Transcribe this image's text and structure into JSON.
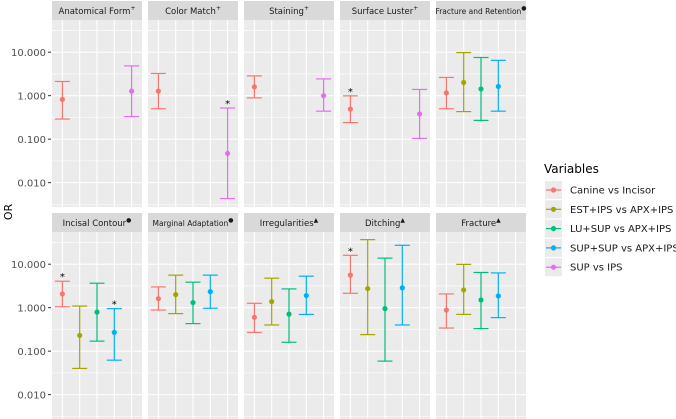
{
  "chart_data": {
    "type": "errorbar",
    "ylabel": "OR",
    "yscale": "log10",
    "ylim": [
      0.00275,
      55
    ],
    "yticks": [
      {
        "value": 10,
        "label": "10.000"
      },
      {
        "value": 1,
        "label": "1.000"
      },
      {
        "value": 0.1,
        "label": "0.100"
      },
      {
        "value": 0.01,
        "label": "0.010"
      }
    ],
    "legend": {
      "title": "Variables",
      "position": "right",
      "entries": [
        {
          "name": "Canine vs Incisor",
          "color": "#F8766D"
        },
        {
          "name": "EST+IPS vs APX+IPS",
          "color": "#A3A500"
        },
        {
          "name": "LU+SUP vs APX+IPS",
          "color": "#00BF7D"
        },
        {
          "name": "SUP+SUP vs APX+IPS",
          "color": "#00B0F6"
        },
        {
          "name": "SUP vs IPS",
          "color": "#E76BF3"
        }
      ]
    },
    "panels": [
      {
        "title": "Anatomical Form",
        "marker": "+",
        "points": [
          {
            "series": 0,
            "or": 0.82,
            "lo": 0.29,
            "hi": 2.12,
            "sig": false
          },
          {
            "series": 4,
            "or": 1.27,
            "lo": 0.33,
            "hi": 4.84,
            "sig": false
          }
        ]
      },
      {
        "title": "Color Match",
        "marker": "+",
        "points": [
          {
            "series": 0,
            "or": 1.27,
            "lo": 0.5,
            "hi": 3.24,
            "sig": false
          },
          {
            "series": 4,
            "or": 0.047,
            "lo": 0.0043,
            "hi": 0.52,
            "sig": true
          }
        ]
      },
      {
        "title": "Staining",
        "marker": "+",
        "points": [
          {
            "series": 0,
            "or": 1.59,
            "lo": 0.89,
            "hi": 2.85,
            "sig": false
          },
          {
            "series": 4,
            "or": 1.0,
            "lo": 0.44,
            "hi": 2.43,
            "sig": false
          }
        ]
      },
      {
        "title": "Surface Luster",
        "marker": "+",
        "points": [
          {
            "series": 0,
            "or": 0.49,
            "lo": 0.24,
            "hi": 0.99,
            "sig": true
          },
          {
            "series": 4,
            "or": 0.38,
            "lo": 0.104,
            "hi": 1.39,
            "sig": false
          }
        ]
      },
      {
        "title": "Fracture and Retention",
        "marker": "●",
        "points": [
          {
            "series": 0,
            "or": 1.16,
            "lo": 0.5,
            "hi": 2.62,
            "sig": false
          },
          {
            "series": 1,
            "or": 2.01,
            "lo": 0.43,
            "hi": 9.8,
            "sig": false
          },
          {
            "series": 2,
            "or": 1.43,
            "lo": 0.27,
            "hi": 7.55,
            "sig": false
          },
          {
            "series": 3,
            "or": 1.63,
            "lo": 0.44,
            "hi": 6.5,
            "sig": false
          }
        ]
      },
      {
        "title": "Incisal Contour",
        "marker": "●",
        "points": [
          {
            "series": 0,
            "or": 2.07,
            "lo": 1.05,
            "hi": 4.06,
            "sig": true
          },
          {
            "series": 1,
            "or": 0.23,
            "lo": 0.04,
            "hi": 1.09,
            "sig": false
          },
          {
            "series": 2,
            "or": 0.79,
            "lo": 0.17,
            "hi": 3.65,
            "sig": false
          },
          {
            "series": 3,
            "or": 0.27,
            "lo": 0.062,
            "hi": 0.95,
            "sig": true
          }
        ]
      },
      {
        "title": "Marginal Adaptation",
        "marker": "●",
        "points": [
          {
            "series": 0,
            "or": 1.61,
            "lo": 0.88,
            "hi": 3.0,
            "sig": false
          },
          {
            "series": 1,
            "or": 2.0,
            "lo": 0.73,
            "hi": 5.6,
            "sig": false
          },
          {
            "series": 2,
            "or": 1.31,
            "lo": 0.43,
            "hi": 3.86,
            "sig": false
          },
          {
            "series": 3,
            "or": 2.34,
            "lo": 0.97,
            "hi": 5.6,
            "sig": false
          }
        ]
      },
      {
        "title": "Irregularities",
        "marker": "▲",
        "points": [
          {
            "series": 0,
            "or": 0.6,
            "lo": 0.27,
            "hi": 1.26,
            "sig": false
          },
          {
            "series": 1,
            "or": 1.38,
            "lo": 0.4,
            "hi": 4.77,
            "sig": false
          },
          {
            "series": 2,
            "or": 0.71,
            "lo": 0.16,
            "hi": 2.7,
            "sig": false
          },
          {
            "series": 3,
            "or": 1.9,
            "lo": 0.7,
            "hi": 5.3,
            "sig": false
          }
        ]
      },
      {
        "title": "Ditching",
        "marker": "▲",
        "points": [
          {
            "series": 0,
            "or": 5.6,
            "lo": 2.14,
            "hi": 16,
            "sig": true
          },
          {
            "series": 1,
            "or": 2.75,
            "lo": 0.24,
            "hi": 36.7,
            "sig": false
          },
          {
            "series": 2,
            "or": 0.95,
            "lo": 0.059,
            "hi": 13.8,
            "sig": false
          },
          {
            "series": 3,
            "or": 2.85,
            "lo": 0.4,
            "hi": 27.2,
            "sig": false
          }
        ]
      },
      {
        "title": "Fracture",
        "marker": "▲",
        "points": [
          {
            "series": 0,
            "or": 0.88,
            "lo": 0.34,
            "hi": 2.07,
            "sig": false
          },
          {
            "series": 1,
            "or": 2.56,
            "lo": 0.7,
            "hi": 9.9,
            "sig": false
          },
          {
            "series": 2,
            "or": 1.5,
            "lo": 0.33,
            "hi": 6.45,
            "sig": false
          },
          {
            "series": 3,
            "or": 1.86,
            "lo": 0.59,
            "hi": 6.3,
            "sig": false
          }
        ]
      }
    ],
    "significance_label": "*"
  }
}
